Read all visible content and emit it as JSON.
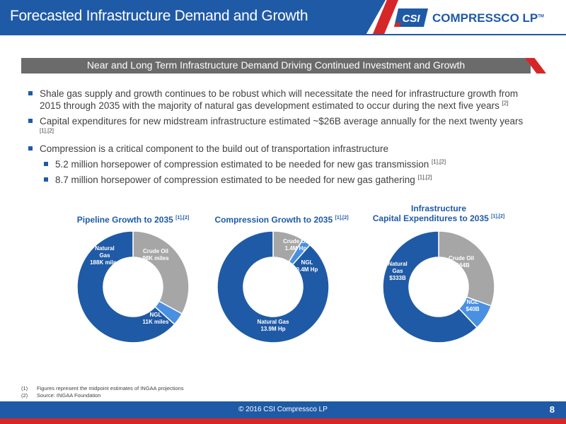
{
  "header": {
    "title": "Forecasted Infrastructure Demand and Growth",
    "logo_badge": "CSI",
    "logo_text": "COMPRESSCO LP",
    "logo_tm": "TM"
  },
  "subtitle": "Near and Long Term Infrastructure Demand Driving Continued Investment and Growth",
  "bullets": [
    {
      "text": "Shale gas supply and growth continues to be robust which will necessitate the need for infrastructure growth from 2015 through 2035 with the majority of natural gas development estimated to occur during the next five years",
      "ref": "[2]"
    },
    {
      "text": "Capital expenditures for new midstream infrastructure estimated ~$26B average annually for the next twenty years",
      "ref": "[1],[2]"
    },
    {
      "text": "Compression is a critical component to the build out of transportation infrastructure",
      "ref": ""
    },
    {
      "text": "5.2 million horsepower of compression estimated to be needed for new gas transmission",
      "ref": "[1],[2]"
    },
    {
      "text": "8.7 million horsepower of compression estimated to be needed for new gas gathering",
      "ref": "[1],[2]"
    }
  ],
  "chart_data": [
    {
      "type": "pie",
      "title": "Pipeline Growth to 2035",
      "title_ref": "[1],[2]",
      "slices": [
        {
          "name": "Crude Oil",
          "value": 98,
          "label": [
            "Crude Oil",
            "98K miles"
          ],
          "color": "#a6a6a6"
        },
        {
          "name": "NGL",
          "value": 11,
          "label": [
            "NGL",
            "11K miles"
          ],
          "color": "#4a90e2"
        },
        {
          "name": "Natural Gas",
          "value": 188,
          "label": [
            "Natural",
            "Gas",
            "188K miles"
          ],
          "color": "#1f5aa6"
        }
      ]
    },
    {
      "type": "pie",
      "title": "Compression Growth to 2035",
      "title_ref": "[1],[2]",
      "slices": [
        {
          "name": "Crude Oil",
          "value": 1.4,
          "label": [
            "Crude Oil",
            "1.4M Hp"
          ],
          "color": "#a6a6a6"
        },
        {
          "name": "NGL",
          "value": 0.4,
          "label": [
            "NGL",
            "0.4M Hp"
          ],
          "color": "#4a90e2"
        },
        {
          "name": "Natural Gas",
          "value": 13.9,
          "label": [
            "Natural Gas",
            "13.9M Hp"
          ],
          "color": "#1f5aa6"
        }
      ]
    },
    {
      "type": "pie",
      "title": "Infrastructure",
      "title_line2": "Capital Expenditures to 2035",
      "title_ref": "[1],[2]",
      "slices": [
        {
          "name": "Crude Oil",
          "value": 164,
          "label": [
            "Crude Oil",
            "$164B"
          ],
          "color": "#a6a6a6"
        },
        {
          "name": "NGL",
          "value": 40,
          "label": [
            "NGL",
            "$40B"
          ],
          "color": "#4a90e2"
        },
        {
          "name": "Natural Gas",
          "value": 333,
          "label": [
            "Natural",
            "Gas",
            "$333B"
          ],
          "color": "#1f5aa6"
        }
      ]
    }
  ],
  "footnotes": [
    {
      "num": "(1)",
      "text": "Figures represent the midpoint estimates of INGAA projections"
    },
    {
      "num": "(2)",
      "text": "Source: INGAA Foundation"
    }
  ],
  "footer": {
    "copyright": "© 2016 CSI Compressco LP",
    "page": "8"
  }
}
